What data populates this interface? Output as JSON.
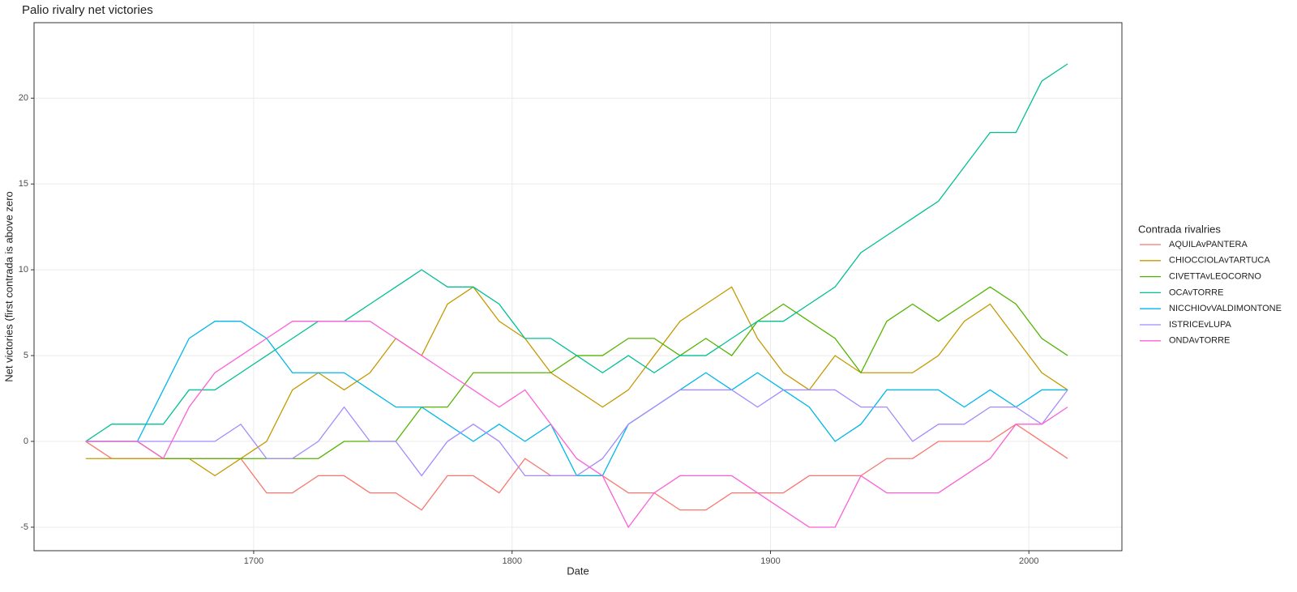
{
  "chart_data": {
    "type": "line",
    "title": "Palio rivalry net victories",
    "x_label": "Date",
    "y_label": "Net victories (first contrada is above zero",
    "legend_title": "Contrada rivalries",
    "legend": "right",
    "grid": true,
    "xlim": [
      1615,
      2036
    ],
    "ylim": [
      -6.37,
      24.4
    ],
    "xticks": [
      1700,
      1800,
      1900,
      2000
    ],
    "yticks": [
      -5,
      0,
      5,
      10,
      15,
      20
    ],
    "x": [
      1635,
      1645,
      1655,
      1665,
      1675,
      1685,
      1695,
      1705,
      1715,
      1725,
      1735,
      1745,
      1755,
      1765,
      1775,
      1785,
      1795,
      1805,
      1815,
      1825,
      1835,
      1845,
      1855,
      1865,
      1875,
      1885,
      1895,
      1905,
      1915,
      1925,
      1935,
      1945,
      1955,
      1965,
      1975,
      1985,
      1995,
      2005,
      2015
    ],
    "series": [
      {
        "name": "AQUILAvPANTERA",
        "color": "#F8766D",
        "values": [
          0,
          -1,
          -1,
          -1,
          -1,
          -1,
          -1,
          -3,
          -3,
          -2,
          -2,
          -3,
          -3,
          -4,
          -2,
          -2,
          -3,
          -1,
          -2,
          -2,
          -2,
          -3,
          -3,
          -4,
          -4,
          -3,
          -3,
          -3,
          -2,
          -2,
          -2,
          -1,
          -1,
          0,
          0,
          0,
          1,
          0,
          -1
        ]
      },
      {
        "name": "CHIOCCIOLAvTARTUCA",
        "color": "#C49A00",
        "values": [
          -1,
          -1,
          -1,
          -1,
          -1,
          -2,
          -1,
          0,
          3,
          4,
          3,
          4,
          6,
          5,
          8,
          9,
          7,
          6,
          4,
          3,
          2,
          3,
          5,
          7,
          8,
          9,
          6,
          4,
          3,
          5,
          4,
          4,
          4,
          5,
          7,
          8,
          6,
          4,
          3
        ]
      },
      {
        "name": "CIVETTAvLEOCORNO",
        "color": "#53B400",
        "values": [
          0,
          0,
          0,
          -1,
          -1,
          -1,
          -1,
          -1,
          -1,
          -1,
          0,
          0,
          0,
          2,
          2,
          4,
          4,
          4,
          4,
          5,
          5,
          6,
          6,
          5,
          6,
          5,
          7,
          8,
          7,
          6,
          4,
          7,
          8,
          7,
          8,
          9,
          8,
          6,
          5
        ]
      },
      {
        "name": "OCAvTORRE",
        "color": "#00C094",
        "values": [
          0,
          1,
          1,
          1,
          3,
          3,
          4,
          5,
          6,
          7,
          7,
          8,
          9,
          10,
          9,
          9,
          8,
          6,
          6,
          5,
          4,
          5,
          4,
          5,
          5,
          6,
          7,
          7,
          8,
          9,
          11,
          12,
          13,
          14,
          16,
          18,
          18,
          21,
          22
        ]
      },
      {
        "name": "NICCHIOvVALDIMONTONE",
        "color": "#00B6EB",
        "values": [
          0,
          0,
          0,
          3,
          6,
          7,
          7,
          6,
          4,
          4,
          4,
          3,
          2,
          2,
          1,
          0,
          1,
          0,
          1,
          -2,
          -2,
          1,
          2,
          3,
          4,
          3,
          4,
          3,
          2,
          0,
          1,
          3,
          3,
          3,
          2,
          3,
          2,
          3,
          3
        ]
      },
      {
        "name": "ISTRICEvLUPA",
        "color": "#A58AFF",
        "values": [
          0,
          0,
          0,
          0,
          0,
          0,
          1,
          -1,
          -1,
          0,
          2,
          0,
          0,
          -2,
          0,
          1,
          0,
          -2,
          -2,
          -2,
          -1,
          1,
          2,
          3,
          3,
          3,
          2,
          3,
          3,
          3,
          2,
          2,
          0,
          1,
          1,
          2,
          2,
          1,
          3
        ]
      },
      {
        "name": "ONDAvTORRE",
        "color": "#FB61D7",
        "values": [
          0,
          0,
          0,
          -1,
          2,
          4,
          5,
          6,
          7,
          7,
          7,
          7,
          6,
          5,
          4,
          3,
          2,
          3,
          1,
          -1,
          -2,
          -5,
          -3,
          -2,
          -2,
          -2,
          -3,
          -4,
          -5,
          -5,
          -2,
          -3,
          -3,
          -3,
          -2,
          -1,
          1,
          1,
          2
        ]
      }
    ]
  }
}
